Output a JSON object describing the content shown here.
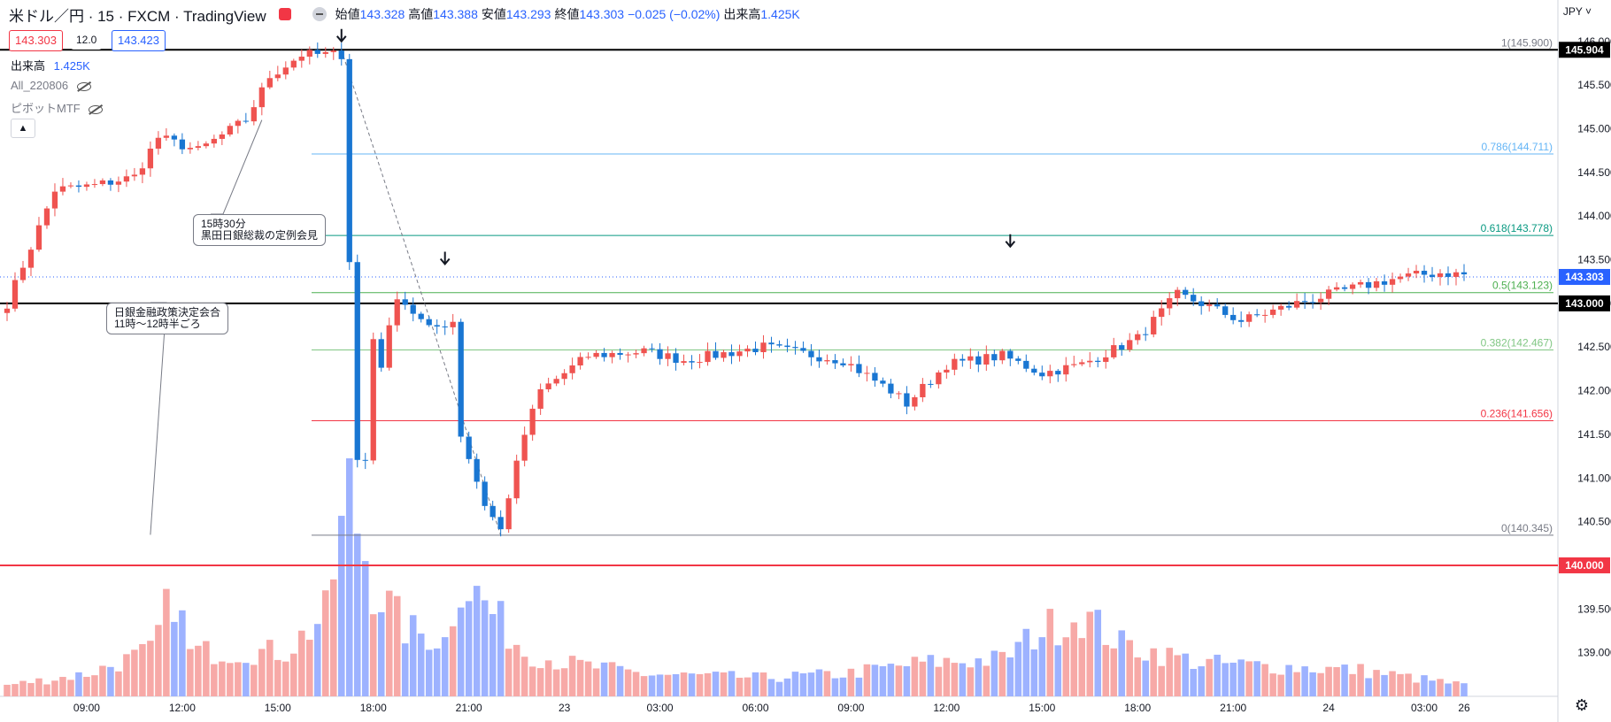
{
  "header": {
    "symbol": "米ドル／円 · 15 · FXCM · TradingView",
    "ohlc": [
      {
        "k": "始値",
        "v": "143.328"
      },
      {
        "k": "高値",
        "v": "143.388"
      },
      {
        "k": "安値",
        "v": "143.293"
      },
      {
        "k": "終値",
        "v": "143.303"
      },
      {
        "k": "",
        "v": "−0.025 (−0.02%)"
      },
      {
        "k": "出来高",
        "v": "1.425K"
      }
    ],
    "sell_price": "143.303",
    "spread": "12.0",
    "buy_price": "143.423",
    "currency": "JPY"
  },
  "legends": {
    "volume": "出来高",
    "volume_value": "1.425K",
    "indicator1": "All_220806",
    "indicator2": "ピボットMTF",
    "collapse_icon": "chevron-up-icon",
    "visibility_icon": "eye-off-icon"
  },
  "annotations": [
    {
      "id": "boj1",
      "lines": [
        "日銀金融政策決定会合",
        "11時～12時半ごろ"
      ]
    },
    {
      "id": "boj2",
      "lines": [
        "15時30分",
        "黒田日銀総裁の定例会見"
      ]
    }
  ],
  "chart_data": {
    "type": "candlestick",
    "symbol": "USDJPY",
    "timeframe": "15",
    "ylim": [
      138.5,
      146.15
    ],
    "y_ticks": [
      "146.000",
      "145.500",
      "145.000",
      "144.500",
      "144.000",
      "143.500",
      "143.000",
      "142.500",
      "142.000",
      "141.500",
      "141.000",
      "140.500",
      "139.500",
      "139.000"
    ],
    "x_ticks": [
      "09:00",
      "12:00",
      "15:00",
      "18:00",
      "21:00",
      "23",
      "03:00",
      "06:00",
      "09:00",
      "12:00",
      "15:00",
      "18:00",
      "21:00",
      "24",
      "03:00",
      "26"
    ],
    "fib_levels": [
      {
        "label": "1(145.900)",
        "value": 145.9,
        "color": "#787b86"
      },
      {
        "label": "0.786(144.711)",
        "value": 144.711,
        "color": "#64b5f6"
      },
      {
        "label": "0.618(143.778)",
        "value": 143.778,
        "color": "#089981"
      },
      {
        "label": "0.5(143.123)",
        "value": 143.123,
        "color": "#4caf50"
      },
      {
        "label": "0.382(142.467)",
        "value": 142.467,
        "color": "#81c784"
      },
      {
        "label": "0.236(141.656)",
        "value": 141.656,
        "color": "#f23645"
      },
      {
        "label": "0(140.345)",
        "value": 140.345,
        "color": "#787b86"
      }
    ],
    "horizontal_lines": [
      {
        "label": "145.904",
        "value": 145.904,
        "color": "#000000"
      },
      {
        "label": "143.000",
        "value": 143.0,
        "color": "#000000"
      },
      {
        "label": "140.000",
        "value": 140.0,
        "color": "#f23645"
      }
    ],
    "last_price": {
      "label": "143.303",
      "value": 143.303,
      "color": "#2962ff"
    },
    "arrows": [
      {
        "bar": 42,
        "value": 146.0
      },
      {
        "bar": 55,
        "value": 143.45
      },
      {
        "bar": 126,
        "value": 143.65
      }
    ],
    "segments": [
      [
        0,
        143.0
      ],
      [
        6,
        144.3
      ],
      [
        11,
        144.35
      ],
      [
        16,
        144.45
      ],
      [
        19,
        144.9
      ],
      [
        24,
        144.75
      ],
      [
        30,
        145.1
      ],
      [
        33,
        145.6
      ],
      [
        37,
        145.85
      ],
      [
        40,
        145.85
      ],
      [
        42,
        145.85
      ],
      [
        43,
        143.5
      ],
      [
        44,
        141.2
      ],
      [
        45,
        141.2
      ],
      [
        46,
        142.6
      ],
      [
        47,
        142.3
      ],
      [
        49,
        143.1
      ],
      [
        50,
        143.0
      ],
      [
        53,
        142.7
      ],
      [
        56,
        142.8
      ],
      [
        57,
        141.5
      ],
      [
        60,
        140.7
      ],
      [
        62,
        140.4
      ],
      [
        63,
        140.8
      ],
      [
        65,
        141.5
      ],
      [
        67,
        142.0
      ],
      [
        70,
        142.2
      ],
      [
        73,
        142.4
      ],
      [
        80,
        142.45
      ],
      [
        85,
        142.35
      ],
      [
        95,
        142.5
      ],
      [
        105,
        142.35
      ],
      [
        111,
        142.0
      ],
      [
        113,
        141.85
      ],
      [
        118,
        142.3
      ],
      [
        125,
        142.4
      ],
      [
        130,
        142.2
      ],
      [
        135,
        142.3
      ],
      [
        142,
        142.6
      ],
      [
        147,
        143.1
      ],
      [
        150,
        143.0
      ],
      [
        155,
        142.8
      ],
      [
        162,
        143.0
      ],
      [
        168,
        143.15
      ],
      [
        175,
        143.3
      ],
      [
        180,
        143.35
      ],
      [
        183,
        143.33
      ]
    ],
    "volume_profile": [
      [
        0,
        0.03
      ],
      [
        10,
        0.06
      ],
      [
        18,
        0.12
      ],
      [
        21,
        0.28
      ],
      [
        23,
        0.12
      ],
      [
        35,
        0.12
      ],
      [
        40,
        0.22
      ],
      [
        43,
        0.55
      ],
      [
        46,
        0.3
      ],
      [
        50,
        0.18
      ],
      [
        55,
        0.15
      ],
      [
        57,
        0.32
      ],
      [
        60,
        0.25
      ],
      [
        65,
        0.12
      ],
      [
        70,
        0.09
      ],
      [
        80,
        0.06
      ],
      [
        95,
        0.05
      ],
      [
        105,
        0.06
      ],
      [
        115,
        0.09
      ],
      [
        125,
        0.1
      ],
      [
        130,
        0.18
      ],
      [
        135,
        0.22
      ],
      [
        140,
        0.14
      ],
      [
        150,
        0.09
      ],
      [
        160,
        0.08
      ],
      [
        170,
        0.07
      ],
      [
        183,
        0.03
      ]
    ],
    "bar_count": 184
  }
}
